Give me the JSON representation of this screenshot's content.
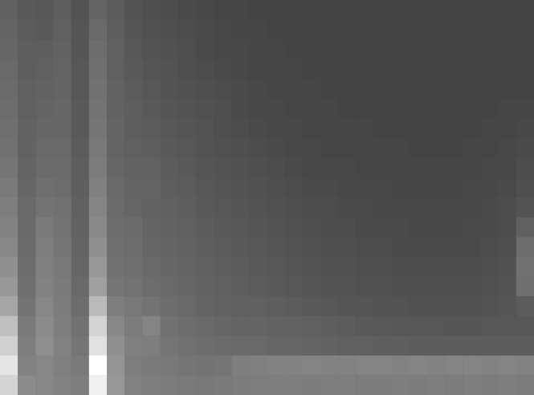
{
  "chart_data": {
    "type": "heatmap",
    "tick_labels": false,
    "values": [
      [
        18,
        15,
        14,
        17,
        12,
        20,
        16,
        12,
        10,
        9,
        8,
        7,
        6,
        6,
        5,
        5,
        5,
        5,
        5,
        5,
        5,
        5,
        5,
        5,
        5,
        5,
        5,
        5,
        5,
        5
      ],
      [
        20,
        16,
        15,
        18,
        13,
        22,
        17,
        13,
        11,
        10,
        9,
        8,
        7,
        6,
        6,
        5,
        5,
        5,
        5,
        5,
        5,
        5,
        5,
        5,
        5,
        5,
        5,
        5,
        5,
        5
      ],
      [
        21,
        17,
        17,
        19,
        13,
        24,
        18,
        14,
        12,
        11,
        10,
        8,
        7,
        7,
        6,
        6,
        5,
        5,
        5,
        5,
        5,
        5,
        5,
        5,
        5,
        5,
        5,
        5,
        5,
        5
      ],
      [
        22,
        17,
        18,
        20,
        14,
        25,
        18,
        15,
        13,
        12,
        10,
        9,
        8,
        7,
        6,
        6,
        6,
        5,
        5,
        5,
        5,
        5,
        5,
        5,
        5,
        5,
        5,
        5,
        5,
        5
      ],
      [
        23,
        18,
        19,
        20,
        14,
        26,
        19,
        16,
        14,
        12,
        11,
        10,
        9,
        8,
        7,
        6,
        6,
        6,
        5,
        5,
        5,
        5,
        5,
        5,
        5,
        5,
        5,
        5,
        5,
        5
      ],
      [
        24,
        18,
        20,
        21,
        15,
        27,
        19,
        17,
        15,
        13,
        12,
        11,
        10,
        8,
        7,
        7,
        6,
        6,
        6,
        5,
        5,
        5,
        5,
        5,
        5,
        5,
        5,
        5,
        6,
        6
      ],
      [
        25,
        19,
        21,
        21,
        15,
        28,
        20,
        17,
        16,
        14,
        13,
        12,
        10,
        9,
        8,
        7,
        7,
        6,
        6,
        6,
        6,
        5,
        5,
        5,
        5,
        5,
        5,
        6,
        6,
        7
      ],
      [
        26,
        19,
        22,
        22,
        16,
        29,
        20,
        18,
        17,
        15,
        14,
        12,
        11,
        10,
        9,
        8,
        7,
        7,
        6,
        6,
        6,
        6,
        6,
        5,
        5,
        5,
        6,
        6,
        7,
        8
      ],
      [
        28,
        20,
        23,
        23,
        17,
        31,
        21,
        19,
        19,
        16,
        15,
        13,
        12,
        11,
        10,
        9,
        8,
        7,
        7,
        7,
        6,
        6,
        6,
        6,
        6,
        6,
        6,
        7,
        7,
        9
      ],
      [
        30,
        21,
        25,
        24,
        17,
        33,
        22,
        20,
        20,
        17,
        16,
        14,
        13,
        12,
        11,
        10,
        9,
        8,
        8,
        7,
        7,
        7,
        6,
        6,
        6,
        6,
        7,
        7,
        8,
        10
      ],
      [
        32,
        22,
        27,
        26,
        18,
        35,
        23,
        21,
        19,
        18,
        17,
        15,
        14,
        13,
        12,
        11,
        10,
        9,
        9,
        8,
        8,
        7,
        7,
        7,
        7,
        7,
        7,
        8,
        9,
        12
      ],
      [
        34,
        22,
        30,
        27,
        19,
        37,
        24,
        23,
        20,
        19,
        18,
        16,
        15,
        14,
        13,
        12,
        11,
        10,
        9,
        9,
        8,
        8,
        8,
        7,
        7,
        7,
        8,
        8,
        9,
        18
      ],
      [
        36,
        23,
        32,
        28,
        20,
        40,
        25,
        24,
        21,
        20,
        19,
        17,
        16,
        15,
        14,
        13,
        12,
        11,
        10,
        10,
        9,
        9,
        8,
        8,
        8,
        8,
        8,
        9,
        10,
        24
      ],
      [
        40,
        24,
        33,
        29,
        21,
        44,
        26,
        25,
        22,
        21,
        20,
        18,
        17,
        16,
        15,
        14,
        13,
        12,
        11,
        11,
        10,
        10,
        9,
        9,
        9,
        9,
        9,
        10,
        11,
        26
      ],
      [
        44,
        25,
        34,
        30,
        22,
        48,
        28,
        27,
        24,
        22,
        21,
        19,
        18,
        17,
        16,
        15,
        14,
        13,
        12,
        12,
        11,
        11,
        10,
        10,
        10,
        10,
        10,
        11,
        12,
        25
      ],
      [
        50,
        27,
        36,
        31,
        24,
        60,
        32,
        29,
        27,
        24,
        22,
        20,
        19,
        18,
        18,
        17,
        16,
        15,
        14,
        13,
        13,
        12,
        12,
        11,
        11,
        11,
        11,
        12,
        13,
        16
      ],
      [
        62,
        30,
        38,
        32,
        26,
        72,
        36,
        31,
        35,
        26,
        24,
        22,
        21,
        20,
        20,
        19,
        19,
        18,
        17,
        16,
        15,
        15,
        14,
        14,
        14,
        13,
        13,
        14,
        14,
        14
      ],
      [
        70,
        32,
        40,
        34,
        28,
        78,
        40,
        33,
        32,
        28,
        26,
        24,
        23,
        22,
        22,
        21,
        21,
        20,
        19,
        18,
        18,
        17,
        17,
        16,
        16,
        16,
        16,
        16,
        16,
        16
      ],
      [
        80,
        34,
        36,
        33,
        30,
        92,
        42,
        32,
        30,
        29,
        28,
        27,
        28,
        32,
        33,
        34,
        34,
        35,
        34,
        34,
        35,
        35,
        34,
        35,
        34,
        35,
        35,
        34,
        35,
        34
      ],
      [
        72,
        38,
        36,
        34,
        32,
        85,
        44,
        34,
        32,
        31,
        30,
        29,
        30,
        31,
        32,
        32,
        32,
        31,
        32,
        32,
        31,
        31,
        32,
        31,
        32,
        31,
        32,
        31,
        32,
        31
      ]
    ]
  }
}
